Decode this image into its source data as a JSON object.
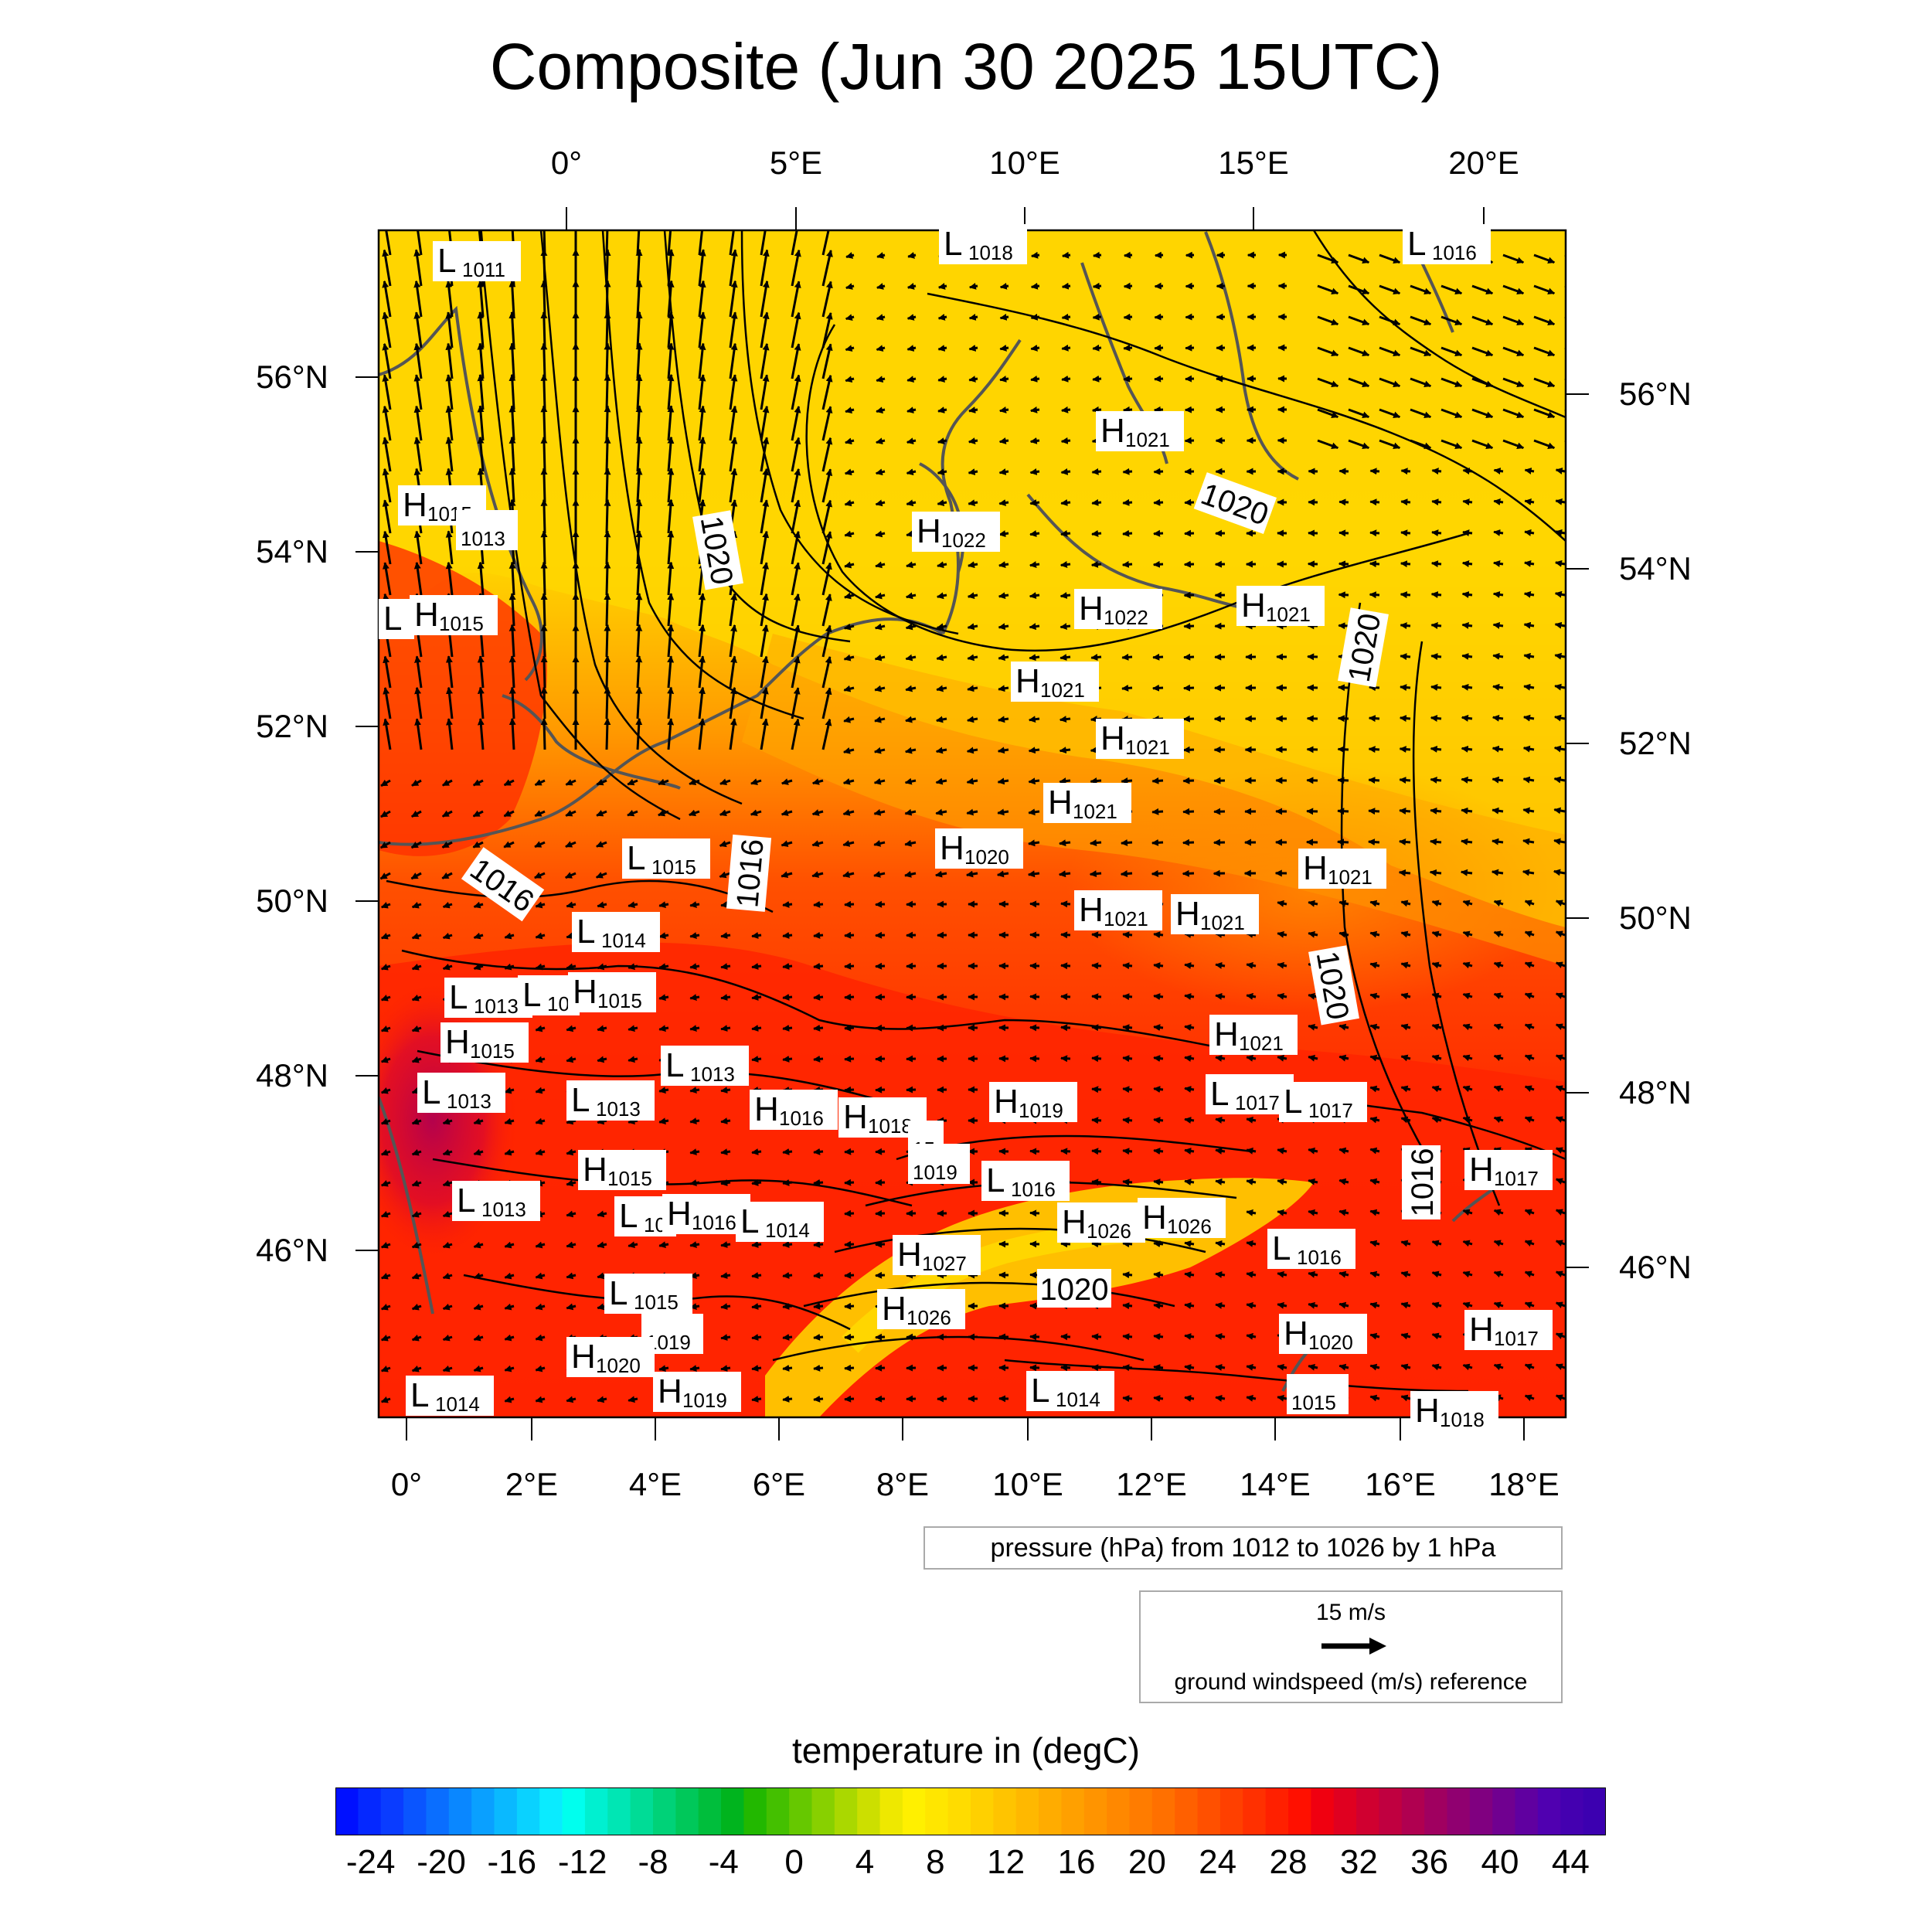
{
  "title": "Composite (Jun 30 2025 15UTC)",
  "top_lon_labels": [
    "0°",
    "5°E",
    "10°E",
    "15°E",
    "20°E"
  ],
  "bottom_lon_labels": [
    "0°",
    "2°E",
    "4°E",
    "6°E",
    "8°E",
    "10°E",
    "12°E",
    "14°E",
    "16°E",
    "18°E"
  ],
  "left_lat_labels": [
    "56°N",
    "54°N",
    "52°N",
    "50°N",
    "48°N",
    "46°N"
  ],
  "right_lat_labels": [
    "56°N",
    "54°N",
    "52°N",
    "50°N",
    "48°N",
    "46°N"
  ],
  "pressure_centers": [
    {
      "t": "L",
      "v": "1011"
    },
    {
      "t": "L",
      "v": "1018"
    },
    {
      "t": "L",
      "v": "1016"
    },
    {
      "t": "H",
      "v": "1021"
    },
    {
      "t": "H",
      "v": "1015"
    },
    {
      "t": "",
      "v": "1013"
    },
    {
      "t": "H",
      "v": "1022"
    },
    {
      "t": "L",
      "v": ""
    },
    {
      "t": "H",
      "v": "1015"
    },
    {
      "t": "H",
      "v": "1022"
    },
    {
      "t": "H",
      "v": "1021"
    },
    {
      "t": "H",
      "v": "1021"
    },
    {
      "t": "H",
      "v": "1021"
    },
    {
      "t": "H",
      "v": "1021"
    },
    {
      "t": "L",
      "v": "1015"
    },
    {
      "t": "H",
      "v": "1020"
    },
    {
      "t": "H",
      "v": "1021"
    },
    {
      "t": "L",
      "v": "1014"
    },
    {
      "t": "H",
      "v": "1021"
    },
    {
      "t": "H",
      "v": "1021"
    },
    {
      "t": "L",
      "v": "1013"
    },
    {
      "t": "L",
      "v": "10"
    },
    {
      "t": "H",
      "v": "1015"
    },
    {
      "t": "H",
      "v": "1015"
    },
    {
      "t": "H",
      "v": "1021"
    },
    {
      "t": "L",
      "v": "1013"
    },
    {
      "t": "L",
      "v": "1013"
    },
    {
      "t": "L",
      "v": "1013"
    },
    {
      "t": "H",
      "v": "1016"
    },
    {
      "t": "H",
      "v": "1018"
    },
    {
      "t": "",
      "v": "15"
    },
    {
      "t": "H",
      "v": "1019"
    },
    {
      "t": "L",
      "v": "1017"
    },
    {
      "t": "L",
      "v": "1017"
    },
    {
      "t": "",
      "v": "1019"
    },
    {
      "t": "L",
      "v": "1016"
    },
    {
      "t": "H",
      "v": "1015"
    },
    {
      "t": "H",
      "v": "1017"
    },
    {
      "t": "L",
      "v": "1013"
    },
    {
      "t": "L",
      "v": "10"
    },
    {
      "t": "H",
      "v": "1016"
    },
    {
      "t": "L",
      "v": "1014"
    },
    {
      "t": "H",
      "v": "1026"
    },
    {
      "t": "H",
      "v": "1026"
    },
    {
      "t": "L",
      "v": "1016"
    },
    {
      "t": "H",
      "v": "1027"
    },
    {
      "t": "L",
      "v": "1015"
    },
    {
      "t": "H",
      "v": "1026"
    },
    {
      "t": "",
      "v": "1019"
    },
    {
      "t": "H",
      "v": "1020"
    },
    {
      "t": "H",
      "v": "1017"
    },
    {
      "t": "H",
      "v": "1020"
    },
    {
      "t": "H",
      "v": "1019"
    },
    {
      "t": "L",
      "v": "1014"
    },
    {
      "t": "L",
      "v": "1014"
    },
    {
      "t": "",
      "v": "1015"
    },
    {
      "t": "H",
      "v": "1018"
    }
  ],
  "isobar_labels": [
    "1020",
    "1020",
    "1020",
    "1016",
    "1016",
    "1020",
    "1016",
    "1020"
  ],
  "pressure_legend": "pressure (hPa) from 1012 to 1026 by 1 hPa",
  "wind_legend": {
    "ref": "15 m/s",
    "desc": "ground windspeed (m/s) reference"
  },
  "colorbar": {
    "title": "temperature in (degC)",
    "min": -26,
    "max": 46,
    "step": 2,
    "ticks": [
      "-24",
      "-20",
      "-16",
      "-12",
      "-8",
      "-4",
      "0",
      "4",
      "8",
      "12",
      "16",
      "20",
      "24",
      "28",
      "32",
      "36",
      "40",
      "44"
    ],
    "colors": [
      "#0010ff",
      "#0528ff",
      "#0a3cff",
      "#0a55ff",
      "#0a6eff",
      "#0a87ff",
      "#0aa0ff",
      "#0ab9ff",
      "#0ad2ff",
      "#0aebff",
      "#00ffee",
      "#00f0d0",
      "#00e6b4",
      "#00dc96",
      "#00d278",
      "#00c85a",
      "#00be3c",
      "#00b41e",
      "#22b800",
      "#44c000",
      "#66c800",
      "#88d000",
      "#aad800",
      "#ccdf00",
      "#eee800",
      "#fff000",
      "#ffe600",
      "#ffdc00",
      "#ffd000",
      "#ffc400",
      "#ffb800",
      "#ffac00",
      "#ffa000",
      "#ff9400",
      "#ff8800",
      "#ff7c00",
      "#ff7000",
      "#ff6000",
      "#ff5000",
      "#ff4000",
      "#ff3000",
      "#ff2000",
      "#ff1000",
      "#f00010",
      "#e00020",
      "#d00030",
      "#c00040",
      "#b00050",
      "#a00060",
      "#900070",
      "#800080",
      "#700090",
      "#6000a0",
      "#5000b0",
      "#4400b0",
      "#3c00b0"
    ]
  },
  "colors": {
    "north_field": "#ffd400",
    "south_field": "#ff3000",
    "hot_field": "#c80040",
    "alps_field": "#ffd000",
    "coast": "#555555"
  }
}
